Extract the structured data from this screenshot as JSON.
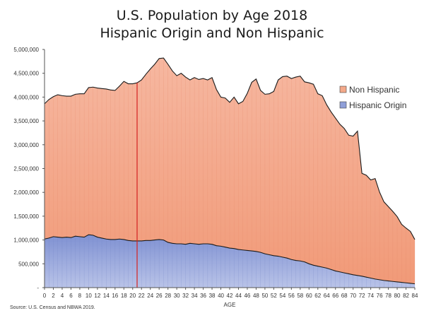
{
  "chart_data": {
    "type": "area",
    "title": "U.S. Population by Age 2018",
    "subtitle": "Hispanic Origin and Non Hispanic",
    "xlabel": "AGE",
    "ylabel": "",
    "ylim": [
      0,
      5000000
    ],
    "y_ticks": [
      "-",
      "500,000",
      "1,000,000",
      "1,500,000",
      "2,000,000",
      "2,500,000",
      "3,000,000",
      "3,500,000",
      "4,000,000",
      "4,500,000",
      "5,000,000"
    ],
    "x_tick_labels": [
      "0",
      "2",
      "4",
      "6",
      "8",
      "10",
      "12",
      "14",
      "16",
      "18",
      "20",
      "22",
      "24",
      "26",
      "28",
      "30",
      "32",
      "34",
      "36",
      "38",
      "40",
      "42",
      "44",
      "46",
      "48",
      "50",
      "52",
      "54",
      "56",
      "58",
      "60",
      "62",
      "64",
      "66",
      "68",
      "70",
      "72",
      "74",
      "76",
      "78",
      "80",
      "82",
      "84"
    ],
    "stacked": true,
    "legend_position": "right",
    "reference_line_x": 21,
    "x": [
      0,
      1,
      2,
      3,
      4,
      5,
      6,
      7,
      8,
      9,
      10,
      11,
      12,
      13,
      14,
      15,
      16,
      17,
      18,
      19,
      20,
      21,
      22,
      23,
      24,
      25,
      26,
      27,
      28,
      29,
      30,
      31,
      32,
      33,
      34,
      35,
      36,
      37,
      38,
      39,
      40,
      41,
      42,
      43,
      44,
      45,
      46,
      47,
      48,
      49,
      50,
      51,
      52,
      53,
      54,
      55,
      56,
      57,
      58,
      59,
      60,
      61,
      62,
      63,
      64,
      65,
      66,
      67,
      68,
      69,
      70,
      71,
      72,
      73,
      74,
      75,
      76,
      77,
      78,
      79,
      80,
      81,
      82,
      83,
      84
    ],
    "series": [
      {
        "name": "Hispanic Origin",
        "color": "#8f9fd8",
        "values": [
          1020000,
          1040000,
          1070000,
          1060000,
          1050000,
          1060000,
          1050000,
          1080000,
          1070000,
          1060000,
          1110000,
          1100000,
          1060000,
          1040000,
          1020000,
          1010000,
          1010000,
          1020000,
          1010000,
          990000,
          980000,
          980000,
          980000,
          990000,
          990000,
          1000000,
          1010000,
          1000000,
          950000,
          930000,
          920000,
          920000,
          910000,
          930000,
          920000,
          910000,
          920000,
          920000,
          910000,
          880000,
          870000,
          850000,
          830000,
          820000,
          800000,
          790000,
          780000,
          770000,
          760000,
          740000,
          710000,
          690000,
          670000,
          660000,
          640000,
          620000,
          590000,
          570000,
          560000,
          540000,
          500000,
          470000,
          450000,
          430000,
          410000,
          380000,
          350000,
          330000,
          310000,
          290000,
          270000,
          255000,
          240000,
          220000,
          200000,
          180000,
          165000,
          150000,
          140000,
          130000,
          120000,
          110000,
          100000,
          90000,
          80000
        ]
      },
      {
        "name": "Non Hispanic",
        "color": "#f4a98a",
        "values": [
          2840000,
          2910000,
          2940000,
          2990000,
          2980000,
          2960000,
          2970000,
          2980000,
          3000000,
          3010000,
          3090000,
          3110000,
          3130000,
          3140000,
          3150000,
          3140000,
          3130000,
          3210000,
          3320000,
          3290000,
          3300000,
          3320000,
          3380000,
          3490000,
          3600000,
          3690000,
          3800000,
          3820000,
          3740000,
          3620000,
          3530000,
          3580000,
          3510000,
          3430000,
          3490000,
          3460000,
          3470000,
          3440000,
          3500000,
          3280000,
          3130000,
          3130000,
          3060000,
          3180000,
          3060000,
          3120000,
          3300000,
          3540000,
          3620000,
          3400000,
          3350000,
          3380000,
          3450000,
          3700000,
          3790000,
          3820000,
          3800000,
          3850000,
          3880000,
          3780000,
          3800000,
          3800000,
          3620000,
          3600000,
          3430000,
          3310000,
          3210000,
          3100000,
          3030000,
          2910000,
          2910000,
          3030000,
          2160000,
          2140000,
          2060000,
          2110000,
          1840000,
          1650000,
          1560000,
          1470000,
          1370000,
          1220000,
          1150000,
          1090000,
          930000
        ]
      }
    ]
  },
  "source_note": "Source: U.S. Census and NBWA 2019."
}
